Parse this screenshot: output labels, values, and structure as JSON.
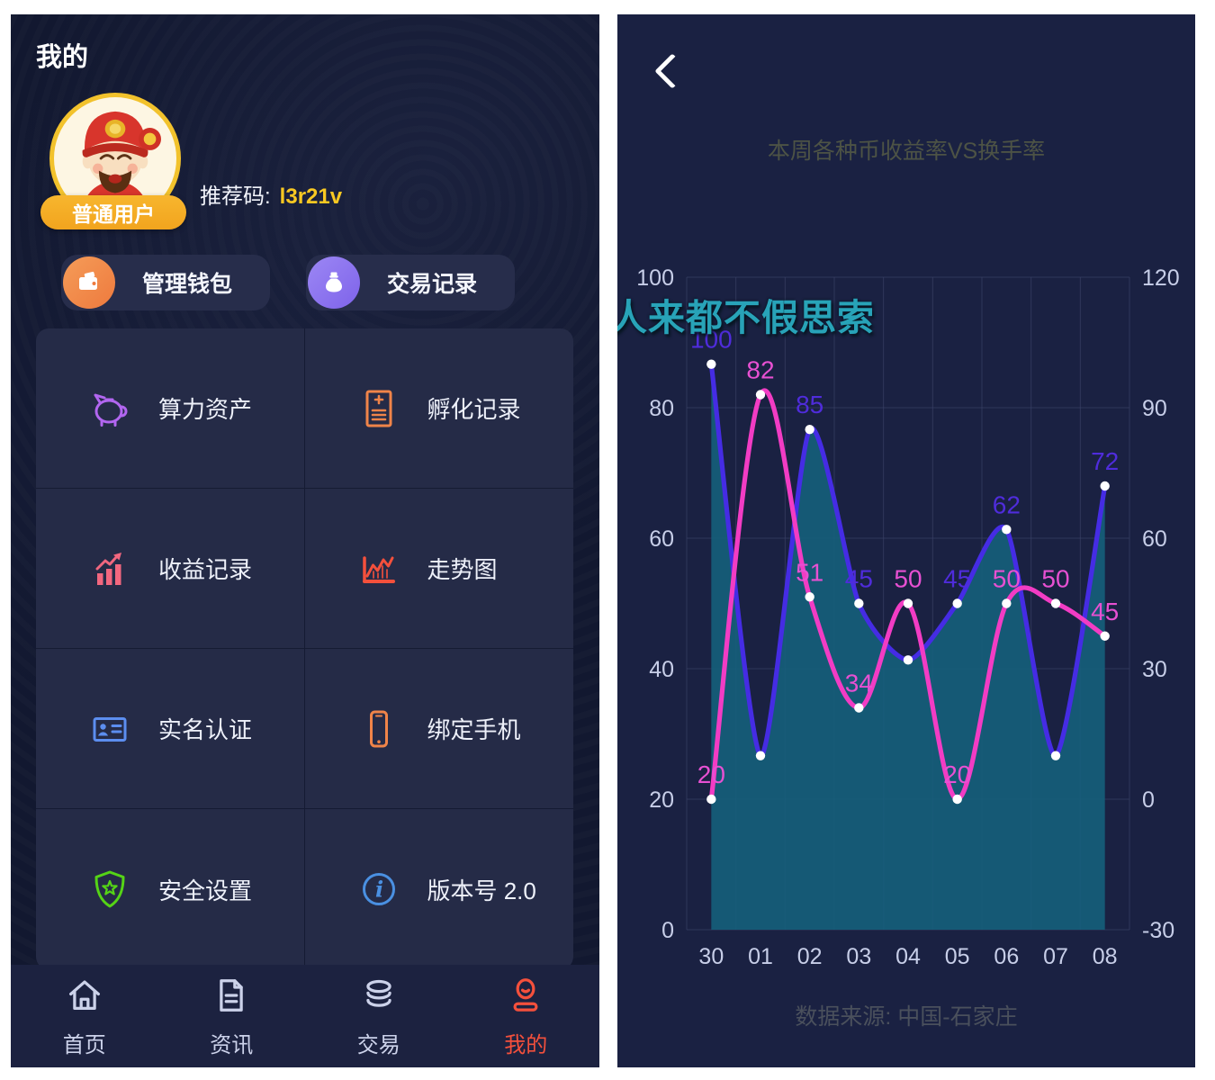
{
  "left_panel": {
    "title": "我的",
    "user": {
      "badge": "普通用户",
      "referral_label": "推荐码:",
      "referral_code": "l3r21v"
    },
    "accent": {
      "badge_bg": "#f5ae24",
      "code_text": "#f8c822",
      "active_nav": "#f4503c"
    },
    "actions": [
      {
        "label": "管理钱包",
        "icon": "wallet-icon",
        "icon_color": "#ee7a3e"
      },
      {
        "label": "交易记录",
        "icon": "money-bag-icon",
        "icon_color": "#7e63ea"
      }
    ],
    "menu": [
      {
        "label": "算力资产",
        "icon": "piggy-bank-icon",
        "icon_color": "#b266f0"
      },
      {
        "label": "孵化记录",
        "icon": "document-plus-icon",
        "icon_color": "#f08449"
      },
      {
        "label": "收益记录",
        "icon": "bar-chart-up-icon",
        "icon_color": "#f2677f"
      },
      {
        "label": "走势图",
        "icon": "trend-chart-icon",
        "icon_color": "#f4503c"
      },
      {
        "label": "实名认证",
        "icon": "id-card-icon",
        "icon_color": "#5c8ef0"
      },
      {
        "label": "绑定手机",
        "icon": "smartphone-icon",
        "icon_color": "#f08449"
      },
      {
        "label": "安全设置",
        "icon": "shield-star-icon",
        "icon_color": "#55d416"
      },
      {
        "label": "版本号 2.0",
        "icon": "info-icon",
        "icon_color": "#4a90e2"
      }
    ],
    "nav": [
      {
        "label": "首页",
        "icon": "home-icon",
        "active": false
      },
      {
        "label": "资讯",
        "icon": "news-icon",
        "active": false
      },
      {
        "label": "交易",
        "icon": "coins-icon",
        "active": false
      },
      {
        "label": "我的",
        "icon": "user-icon",
        "active": true
      }
    ]
  },
  "right_panel": {
    "back_icon": "chevron-left-icon",
    "watermark": "人来都不假思索",
    "source": "数据来源: 中国-石家庄"
  },
  "chart_data": {
    "type": "line",
    "title": "本周各种币收益率VS换手率",
    "categories": [
      "30",
      "01",
      "02",
      "03",
      "04",
      "05",
      "06",
      "07",
      "08"
    ],
    "series": [
      {
        "name": "blue-line-right-axis",
        "color": "#452ce4",
        "label_color": "#4f2cdb",
        "axis": "right",
        "smooth": 0.7,
        "area": true,
        "area_color": "#15617c",
        "values": [
          100,
          10,
          85,
          45,
          32,
          45,
          62,
          10,
          72
        ],
        "label_visible": [
          true,
          false,
          true,
          true,
          false,
          true,
          true,
          false,
          true
        ]
      },
      {
        "name": "pink-line-left-axis",
        "color": "#f23cc4",
        "label_color": "#e750d2",
        "axis": "left",
        "smooth": 1,
        "area": false,
        "area_color": null,
        "values": [
          20,
          82,
          51,
          34,
          50,
          20,
          50,
          50,
          45
        ],
        "label_visible": [
          true,
          true,
          true,
          true,
          true,
          true,
          true,
          true,
          true
        ]
      }
    ],
    "left_axis": {
      "min": 0,
      "max": 100,
      "ticks": [
        100,
        80,
        60,
        40,
        20,
        0
      ]
    },
    "right_axis": {
      "min": -30,
      "max": 120,
      "ticks": [
        120,
        90,
        60,
        30,
        0,
        -30
      ]
    },
    "grid": true,
    "legend": "none"
  }
}
